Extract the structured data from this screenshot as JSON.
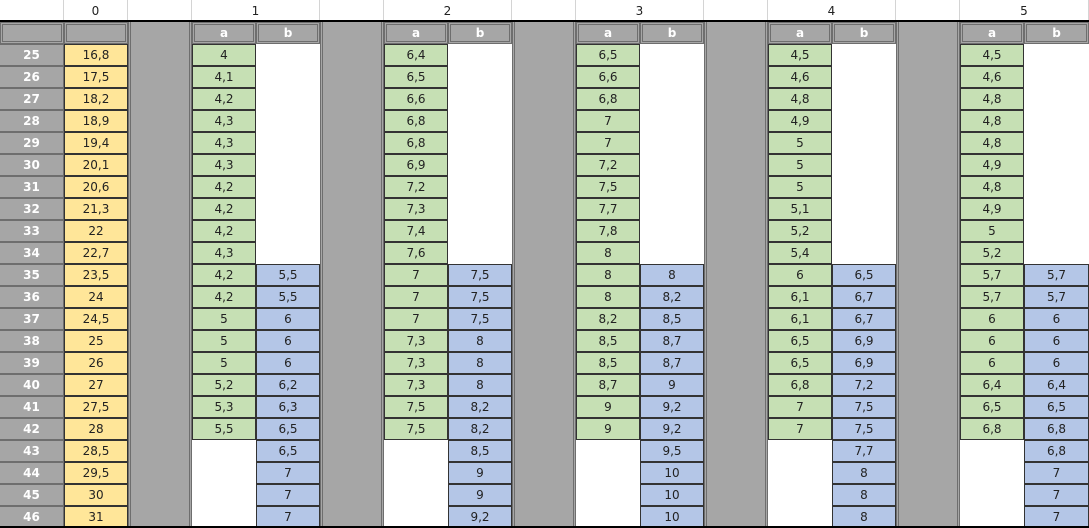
{
  "top_headers": [
    "0",
    "1",
    "2",
    "3",
    "4",
    "5"
  ],
  "sub_headers": {
    "a": "a",
    "b": "b"
  },
  "colors": {
    "yellow": "#ffe699",
    "green": "#c6e0b4",
    "blue": "#b4c6e7",
    "gray": "#a6a6a6"
  },
  "row_labels": [
    "25",
    "26",
    "27",
    "28",
    "29",
    "30",
    "31",
    "32",
    "33",
    "34",
    "35",
    "36",
    "37",
    "38",
    "39",
    "40",
    "41",
    "42",
    "43",
    "44",
    "45",
    "46"
  ],
  "col0": [
    "16,8",
    "17,5",
    "18,2",
    "18,9",
    "19,4",
    "20,1",
    "20,6",
    "21,3",
    "22",
    "22,7",
    "23,5",
    "24",
    "24,5",
    "25",
    "26",
    "27",
    "27,5",
    "28",
    "28,5",
    "29,5",
    "30",
    "31"
  ],
  "groups": [
    {
      "a": [
        "4",
        "4,1",
        "4,2",
        "4,3",
        "4,3",
        "4,3",
        "4,2",
        "4,2",
        "4,2",
        "4,3",
        "4,2",
        "4,2",
        "5",
        "5",
        "5",
        "5,2",
        "5,3",
        "5,5",
        "",
        "",
        "",
        ""
      ],
      "b": [
        "",
        "",
        "",
        "",
        "",
        "",
        "",
        "",
        "",
        "",
        "5,5",
        "5,5",
        "6",
        "6",
        "6",
        "6,2",
        "6,3",
        "6,5",
        "6,5",
        "7",
        "7",
        "7"
      ]
    },
    {
      "a": [
        "6,4",
        "6,5",
        "6,6",
        "6,8",
        "6,8",
        "6,9",
        "7,2",
        "7,3",
        "7,4",
        "7,6",
        "7",
        "7",
        "7",
        "7,3",
        "7,3",
        "7,3",
        "7,5",
        "7,5",
        "",
        "",
        "",
        ""
      ],
      "b": [
        "",
        "",
        "",
        "",
        "",
        "",
        "",
        "",
        "",
        "",
        "7,5",
        "7,5",
        "7,5",
        "8",
        "8",
        "8",
        "8,2",
        "8,2",
        "8,5",
        "9",
        "9",
        "9,2"
      ]
    },
    {
      "a": [
        "6,5",
        "6,6",
        "6,8",
        "7",
        "7",
        "7,2",
        "7,5",
        "7,7",
        "7,8",
        "8",
        "8",
        "8",
        "8,2",
        "8,5",
        "8,5",
        "8,7",
        "9",
        "9",
        "",
        "",
        "",
        ""
      ],
      "b": [
        "",
        "",
        "",
        "",
        "",
        "",
        "",
        "",
        "",
        "",
        "8",
        "8,2",
        "8,5",
        "8,7",
        "8,7",
        "9",
        "9,2",
        "9,2",
        "9,5",
        "10",
        "10",
        "10"
      ]
    },
    {
      "a": [
        "4,5",
        "4,6",
        "4,8",
        "4,9",
        "5",
        "5",
        "5",
        "5,1",
        "5,2",
        "5,4",
        "6",
        "6,1",
        "6,1",
        "6,5",
        "6,5",
        "6,8",
        "7",
        "7",
        "",
        "",
        "",
        ""
      ],
      "b": [
        "",
        "",
        "",
        "",
        "",
        "",
        "",
        "",
        "",
        "",
        "6,5",
        "6,7",
        "6,7",
        "6,9",
        "6,9",
        "7,2",
        "7,5",
        "7,5",
        "7,7",
        "8",
        "8",
        "8"
      ]
    },
    {
      "a": [
        "4,5",
        "4,6",
        "4,8",
        "4,8",
        "4,8",
        "4,9",
        "4,8",
        "4,9",
        "5",
        "5,2",
        "5,7",
        "5,7",
        "6",
        "6",
        "6",
        "6,4",
        "6,5",
        "6,8",
        "",
        "",
        "",
        ""
      ],
      "b": [
        "",
        "",
        "",
        "",
        "",
        "",
        "",
        "",
        "",
        "",
        "5,7",
        "5,7",
        "6",
        "6",
        "6",
        "6,4",
        "6,5",
        "6,8",
        "6,8",
        "7",
        "7",
        "7"
      ]
    }
  ]
}
